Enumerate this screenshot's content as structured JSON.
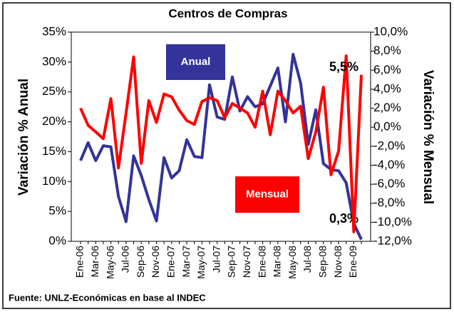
{
  "chart_data": {
    "type": "line",
    "title": "Centros de Compras",
    "ylabel": "Variación % Anual",
    "y2label": "Variación % Mensual",
    "source": "Fuente: UNLZ-Económicas en base al INDEC",
    "categories": [
      "Ene-06",
      null,
      "Mar-06",
      null,
      "May-06",
      null,
      "Jul-06",
      null,
      "Sep-06",
      null,
      "Nov-06",
      null,
      "Ene-07",
      null,
      "Mar-07",
      null,
      "May-07",
      null,
      "Jul-07",
      null,
      "Sep-07",
      null,
      "Nov-07",
      null,
      "Ene-08",
      null,
      "Mar-08",
      null,
      "May-08",
      null,
      "Jul-08",
      null,
      "Sep-08",
      null,
      "Nov-08",
      null,
      "Ene-09",
      null
    ],
    "series": [
      {
        "name": "Anual",
        "color": "#333399",
        "axis": "y",
        "values": [
          13.5,
          16.5,
          13.5,
          16,
          15.8,
          7.5,
          3.3,
          14.3,
          11,
          7,
          3.4,
          14,
          10.6,
          11.8,
          17,
          14.2,
          14,
          26.2,
          20.8,
          20.4,
          27.5,
          21.8,
          24.2,
          22.5,
          23,
          26,
          29,
          20,
          31.3,
          26.5,
          16.2,
          22,
          13,
          12,
          11.8,
          9.8,
          3,
          0.3
        ],
        "value_labels": [
          null,
          null,
          null,
          null,
          null,
          null,
          null,
          null,
          null,
          null,
          null,
          null,
          null,
          null,
          null,
          null,
          null,
          null,
          null,
          null,
          null,
          null,
          null,
          null,
          null,
          null,
          null,
          null,
          null,
          null,
          null,
          null,
          null,
          null,
          null,
          null,
          null,
          "0,3%"
        ]
      },
      {
        "name": "Mensual",
        "color": "#ff0000",
        "axis": "y2",
        "values": [
          2.0,
          0.2,
          -0.5,
          -1.2,
          3.0,
          -4.3,
          1.5,
          7.4,
          -3.8,
          2.8,
          0.5,
          3.5,
          3.2,
          1.8,
          0.7,
          0.3,
          2.7,
          3.1,
          2.8,
          1.0,
          2.5,
          2.0,
          1.5,
          0,
          3.8,
          -0.8,
          3.8,
          2.8,
          1.5,
          2.2,
          -3.3,
          -0.5,
          4.2,
          -5.0,
          -2.5,
          7.5,
          -11.0,
          5.5
        ],
        "value_labels": [
          null,
          null,
          null,
          null,
          null,
          null,
          null,
          null,
          null,
          null,
          null,
          null,
          null,
          null,
          null,
          null,
          null,
          null,
          null,
          null,
          null,
          null,
          null,
          null,
          null,
          null,
          null,
          null,
          null,
          null,
          null,
          null,
          null,
          null,
          null,
          null,
          null,
          "5,5%"
        ]
      }
    ],
    "ylim": [
      0,
      35
    ],
    "yticks": [
      {
        "value": 0,
        "label": "0%"
      },
      {
        "value": 5,
        "label": "5%"
      },
      {
        "value": 10,
        "label": "10%"
      },
      {
        "value": 15,
        "label": "15%"
      },
      {
        "value": 20,
        "label": "20%"
      },
      {
        "value": 25,
        "label": "25%"
      },
      {
        "value": 30,
        "label": "30%"
      },
      {
        "value": 35,
        "label": "35%"
      }
    ],
    "y2lim": [
      -12,
      10
    ],
    "y2ticks": [
      {
        "value": -12,
        "label": "-12,0%"
      },
      {
        "value": -10,
        "label": "-10,0%"
      },
      {
        "value": -8,
        "label": "-8,0%"
      },
      {
        "value": -6,
        "label": "-6,0%"
      },
      {
        "value": -4,
        "label": "-4,0%"
      },
      {
        "value": -2,
        "label": "-2,0%"
      },
      {
        "value": 0,
        "label": "0,0%"
      },
      {
        "value": 2,
        "label": "2,0%"
      },
      {
        "value": 4,
        "label": "4,0%"
      },
      {
        "value": 6,
        "label": "6,0%"
      },
      {
        "value": 8,
        "label": "8,0%"
      },
      {
        "value": 10,
        "label": "10,0%"
      }
    ]
  }
}
